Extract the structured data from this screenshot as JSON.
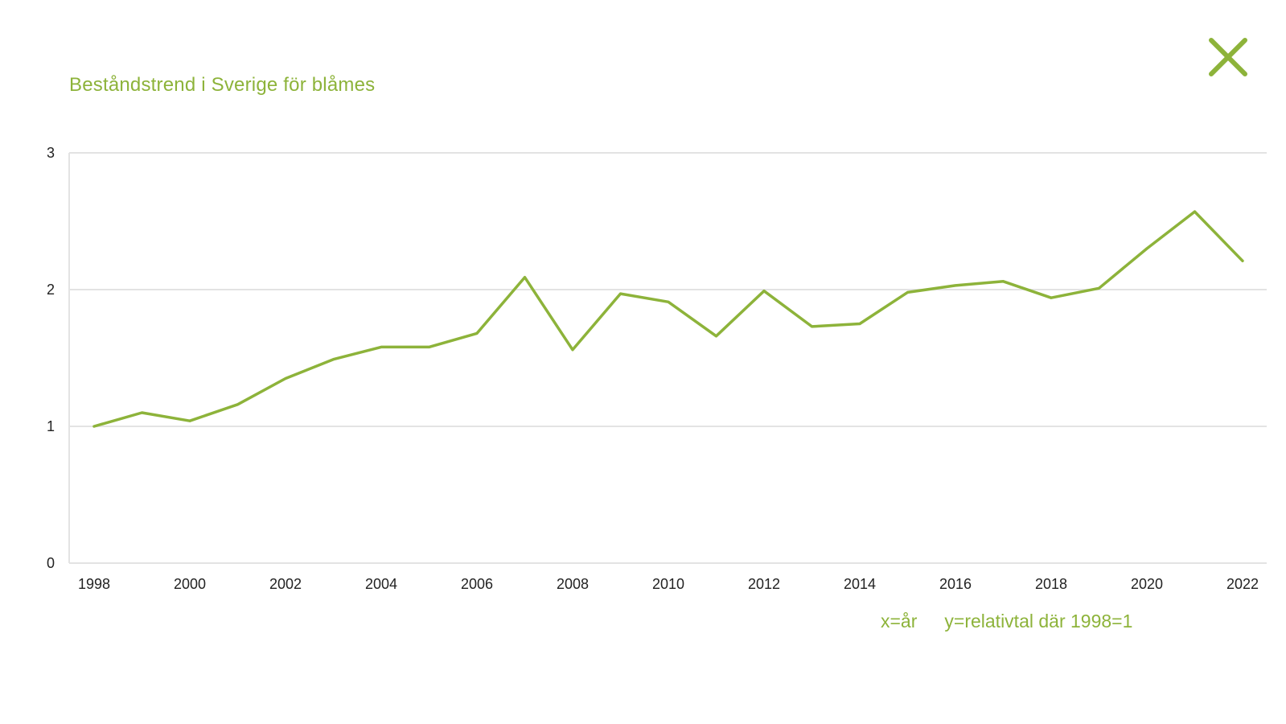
{
  "chart_data": {
    "type": "line",
    "title": "Beståndstrend i Sverige för blåmes",
    "x": [
      1998,
      1999,
      2000,
      2001,
      2002,
      2003,
      2004,
      2005,
      2006,
      2007,
      2008,
      2009,
      2010,
      2011,
      2012,
      2013,
      2014,
      2015,
      2016,
      2017,
      2018,
      2019,
      2020,
      2021,
      2022
    ],
    "series": [
      {
        "values": [
          1.0,
          1.1,
          1.04,
          1.16,
          1.35,
          1.49,
          1.58,
          1.58,
          1.68,
          2.09,
          1.56,
          1.97,
          1.91,
          1.66,
          1.99,
          1.73,
          1.75,
          1.98,
          2.03,
          2.06,
          1.94,
          2.01,
          2.3,
          2.57,
          2.21
        ]
      }
    ],
    "xticks": [
      "1998",
      "2000",
      "2002",
      "2004",
      "2006",
      "2008",
      "2010",
      "2012",
      "2014",
      "2016",
      "2018",
      "2020",
      "2022"
    ],
    "yticks": [
      "0",
      "1",
      "2",
      "3"
    ],
    "xlim": [
      1998,
      2022
    ],
    "ylim": [
      0,
      3
    ],
    "grid": "horizontal",
    "legend_text": [
      "x=år",
      "y=relativtal där 1998=1"
    ],
    "line_color": "#8db33a"
  },
  "close_icon": "close-icon",
  "accent_color": "#8db33a"
}
